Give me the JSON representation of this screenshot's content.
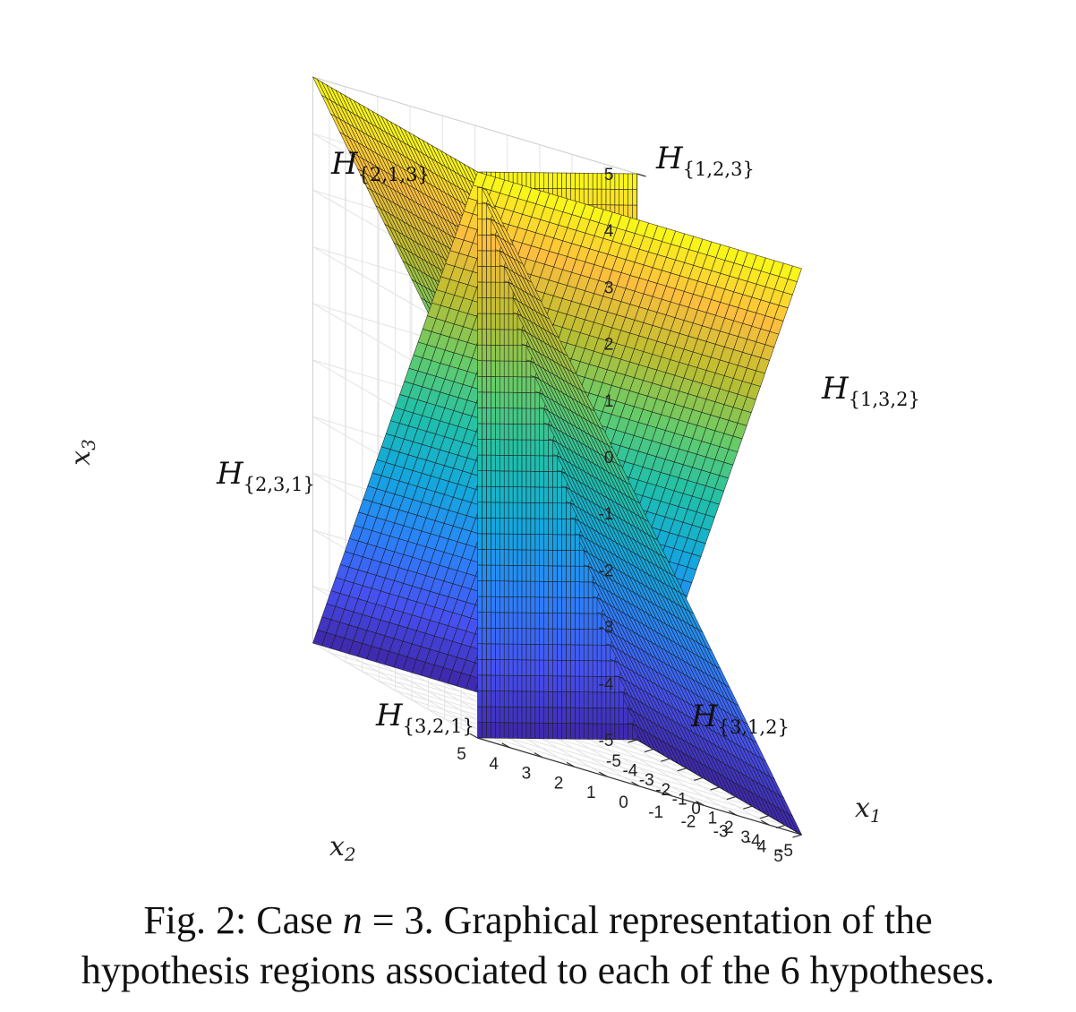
{
  "chart_data": {
    "type": "surface",
    "description_of_planes": [
      {
        "equation": "x1 = x2",
        "name_from_image": ""
      },
      {
        "equation": "x1 = x3",
        "name_from_image": ""
      },
      {
        "equation": "x2 = x3",
        "name_from_image": ""
      }
    ],
    "axes": {
      "x1": {
        "label_main": "x",
        "label_sub": "1",
        "range": [
          -5,
          5
        ],
        "ticks": [
          -5,
          -4,
          -3,
          -2,
          -1,
          0,
          1,
          2,
          3,
          4,
          5
        ]
      },
      "x2": {
        "label_main": "x",
        "label_sub": "2",
        "range": [
          -5,
          5
        ],
        "ticks": [
          -5,
          -4,
          -3,
          -2,
          -1,
          0,
          1,
          2,
          3,
          4,
          5
        ]
      },
      "x3": {
        "label_main": "x",
        "label_sub": "3",
        "range": [
          -5,
          5
        ],
        "ticks": [
          -5,
          -4,
          -3,
          -2,
          -1,
          0,
          1,
          2,
          3,
          4,
          5
        ]
      }
    },
    "colormap": "parula",
    "grid": true,
    "region_labels": [
      {
        "main": "H",
        "sub": "{2,1,3}"
      },
      {
        "main": "H",
        "sub": "{1,2,3}"
      },
      {
        "main": "H",
        "sub": "{1,3,2}"
      },
      {
        "main": "H",
        "sub": "{2,3,1}"
      },
      {
        "main": "H",
        "sub": "{3,2,1}"
      },
      {
        "main": "H",
        "sub": "{3,1,2}"
      }
    ]
  },
  "caption": {
    "line1_prefix": "Fig. 2: Case ",
    "line1_var": "n",
    "line1_rest": " = 3. Graphical representation of the",
    "line2": "hypothesis regions associated to each of the 6 hypotheses."
  }
}
